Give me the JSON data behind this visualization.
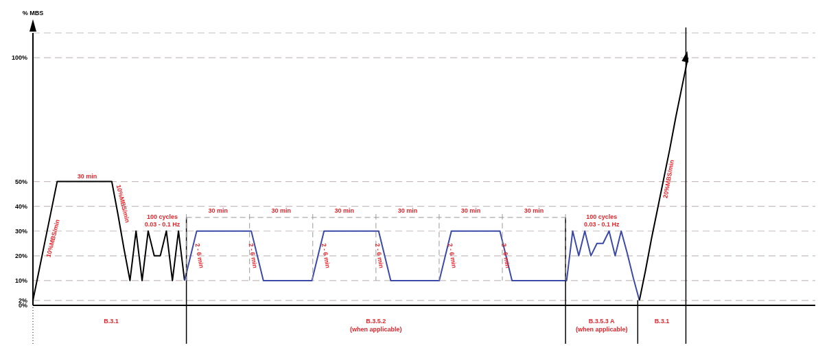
{
  "chart_data": {
    "type": "line",
    "ylabel": "% MBS",
    "categories": [
      null,
      null,
      null,
      null,
      null,
      null,
      null,
      null,
      null,
      null,
      null,
      null,
      null,
      null,
      null,
      null,
      null,
      null,
      null,
      null,
      null,
      null,
      null,
      null,
      null,
      null,
      null,
      null,
      null,
      null,
      null,
      null,
      null,
      null,
      null,
      null,
      null,
      null,
      null,
      null,
      null,
      null,
      null,
      null,
      null,
      null,
      null,
      null,
      null,
      null,
      null,
      null,
      null,
      null,
      null,
      null,
      null,
      null,
      null,
      null,
      null,
      null,
      null,
      null,
      null,
      null,
      null,
      null,
      null,
      null,
      null,
      null,
      null,
      null,
      null,
      null,
      null,
      null,
      null,
      null,
      null,
      null,
      null,
      null,
      null,
      null,
      null,
      null,
      null,
      null,
      null,
      null,
      null,
      null,
      null,
      null,
      null,
      null,
      null,
      null,
      null,
      null,
      null,
      null,
      null,
      null,
      null,
      null,
      null,
      null,
      null,
      null,
      null,
      null,
      null,
      null,
      null,
      null,
      null,
      null,
      null,
      null,
      null,
      null,
      null,
      null,
      null,
      null,
      null,
      null
    ],
    "series": [
      {
        "color": "#000000",
        "values": [
          2,
          14,
          26,
          38,
          50,
          50,
          50,
          50,
          50,
          50,
          50,
          50,
          50,
          50,
          37,
          23,
          10,
          30,
          10,
          30,
          20,
          20,
          30,
          10,
          30,
          10,
          null,
          null,
          null,
          null,
          null,
          null,
          null,
          null,
          null,
          null,
          null,
          null,
          null,
          null,
          null,
          null,
          null,
          null,
          null,
          null,
          null,
          null,
          null,
          null,
          null,
          null,
          null,
          null,
          null,
          null,
          null,
          null,
          null,
          null,
          null,
          null,
          null,
          null,
          null,
          null,
          null,
          null,
          null,
          null,
          null,
          null,
          null,
          null,
          null,
          null,
          null,
          null,
          null,
          null,
          null,
          null,
          null,
          null,
          null,
          null,
          null,
          null,
          null,
          null,
          null,
          null,
          null,
          null,
          null,
          null,
          null,
          null,
          null,
          null,
          null,
          null,
          null,
          null,
          null,
          null,
          null,
          null,
          null,
          null,
          null,
          null,
          null,
          null,
          null,
          null,
          null,
          null,
          null,
          null,
          null,
          null,
          null,
          null,
          null,
          null,
          null,
          null,
          null,
          null
        ]
      },
      {
        "color": "#3b4aa8",
        "values": [
          null,
          null,
          null,
          null,
          null,
          null,
          null,
          null,
          null,
          null,
          null,
          null,
          null,
          null,
          null,
          null,
          null,
          null,
          null,
          null,
          null,
          null,
          null,
          null,
          null,
          10,
          20,
          30,
          30,
          30,
          30,
          30,
          30,
          30,
          30,
          30,
          30,
          20,
          10,
          10,
          10,
          10,
          10,
          10,
          10,
          10,
          10,
          20,
          30,
          30,
          30,
          30,
          30,
          30,
          30,
          30,
          30,
          30,
          20,
          10,
          10,
          10,
          10,
          10,
          10,
          10,
          10,
          10,
          20,
          30,
          30,
          30,
          30,
          30,
          30,
          30,
          30,
          30,
          20,
          10,
          10,
          10,
          10,
          10,
          10,
          10,
          10,
          10,
          10,
          30,
          20,
          30,
          20,
          25,
          25,
          30,
          20,
          30,
          21,
          11,
          2,
          null,
          null,
          null,
          null,
          null,
          null,
          null,
          null,
          null,
          null,
          null,
          null,
          null,
          null,
          null,
          null,
          null,
          null,
          null,
          null,
          null,
          null,
          null,
          null,
          null,
          null,
          null,
          null,
          null
        ]
      },
      {
        "color": "#000000",
        "values": [
          null,
          null,
          null,
          null,
          null,
          null,
          null,
          null,
          null,
          null,
          null,
          null,
          null,
          null,
          null,
          null,
          null,
          null,
          null,
          null,
          null,
          null,
          null,
          null,
          null,
          null,
          null,
          null,
          null,
          null,
          null,
          null,
          null,
          null,
          null,
          null,
          null,
          null,
          null,
          null,
          null,
          null,
          null,
          null,
          null,
          null,
          null,
          null,
          null,
          null,
          null,
          null,
          null,
          null,
          null,
          null,
          null,
          null,
          null,
          null,
          null,
          null,
          null,
          null,
          null,
          null,
          null,
          null,
          null,
          null,
          null,
          null,
          null,
          null,
          null,
          null,
          null,
          null,
          null,
          null,
          null,
          null,
          null,
          null,
          null,
          null,
          null,
          null,
          null,
          null,
          null,
          null,
          null,
          null,
          null,
          null,
          null,
          null,
          null,
          null,
          2,
          14,
          27,
          39,
          51,
          63,
          76,
          88,
          100,
          null,
          null,
          null,
          null,
          null,
          null,
          null,
          null,
          null,
          null,
          null,
          null,
          null,
          null,
          null,
          null,
          null,
          null,
          null,
          null,
          null
        ]
      }
    ],
    "ylim": [
      0,
      110
    ],
    "yticks": [
      {
        "value": 0,
        "label": "0%"
      },
      {
        "value": 2,
        "label": "2%"
      },
      {
        "value": 10,
        "label": "10%"
      },
      {
        "value": 20,
        "label": "20%"
      },
      {
        "value": 30,
        "label": "30%"
      },
      {
        "value": 40,
        "label": "40%"
      },
      {
        "value": 50,
        "label": "50%"
      },
      {
        "value": 100,
        "label": "100%"
      }
    ],
    "grid": "y",
    "tick_labels": "y",
    "annotations": [
      "30 min",
      "10%MBS/min",
      "10%MBS/min",
      "100 cycles",
      "0.03 - 0.1 Hz",
      "30 min",
      "30 min",
      "30 min",
      "30 min",
      "30 min",
      "30 min",
      "2 - 6 min",
      "2 - 6 min",
      "2 - 6 min",
      "2 - 6 min",
      "2 - 6 min",
      "2 - 6 min",
      "100 cycles",
      "0.03 - 0.1 Hz",
      "20%MBS/min",
      "B.3.1",
      "B.3.5.2",
      "(when applicable)",
      "B.3.5.3 A",
      "(when applicable)",
      "B.3.1"
    ]
  }
}
